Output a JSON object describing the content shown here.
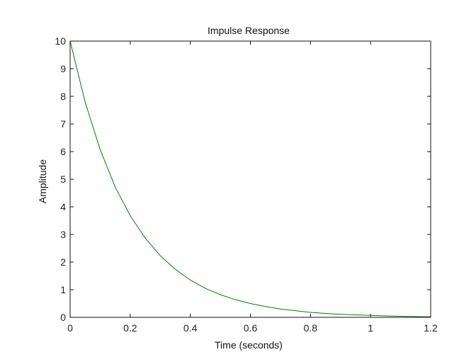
{
  "chart_data": {
    "type": "line",
    "title": "Impulse Response",
    "xlabel": "Time (seconds)",
    "ylabel": "Amplitude",
    "xlim": [
      0,
      1.2
    ],
    "ylim": [
      0,
      10
    ],
    "x_ticks": [
      0,
      0.2,
      0.4,
      0.6,
      0.8,
      1,
      1.2
    ],
    "x_tick_labels": [
      "0",
      "0.2",
      "0.4",
      "0.6",
      "0.8",
      "1",
      "1.2"
    ],
    "y_ticks": [
      0,
      1,
      2,
      3,
      4,
      5,
      6,
      7,
      8,
      9,
      10
    ],
    "y_tick_labels": [
      "0",
      "1",
      "2",
      "3",
      "4",
      "5",
      "6",
      "7",
      "8",
      "9",
      "10"
    ],
    "grid": false,
    "series": [
      {
        "color": "#008000",
        "x": [
          0,
          0.05,
          0.1,
          0.15,
          0.2,
          0.25,
          0.3,
          0.35,
          0.4,
          0.45,
          0.5,
          0.55,
          0.6,
          0.65,
          0.7,
          0.75,
          0.8,
          0.85,
          0.9,
          0.95,
          1.0,
          1.05,
          1.1,
          1.15,
          1.2
        ],
        "y": [
          10,
          7.79,
          6.07,
          4.72,
          3.68,
          2.87,
          2.23,
          1.74,
          1.35,
          1.05,
          0.82,
          0.64,
          0.5,
          0.39,
          0.3,
          0.24,
          0.18,
          0.14,
          0.11,
          0.09,
          0.07,
          0.05,
          0.04,
          0.03,
          0.02
        ]
      }
    ]
  }
}
